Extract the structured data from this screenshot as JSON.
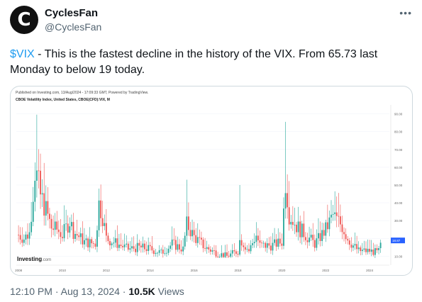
{
  "author": {
    "initial": "C",
    "name": "CyclesFan",
    "handle": "@CyclesFan"
  },
  "menu_icon": "more-horizontal-icon",
  "tweet": {
    "cashtag": "$VIX",
    "text": " - This is the fastest decline in the history of the VIX. From 65.73 last Monday to below 19 today."
  },
  "chart_header": {
    "published": "Published on Investing.com, 13/Aug/2024 - 17:09:33 GMT, Powered by TradingView.",
    "symbol": "CBOE Volatility Index, United States, CBOE(CFD):VIX, M"
  },
  "watermark": {
    "brand": "Investing",
    "suffix": ".com"
  },
  "chart_data": {
    "type": "candlestick",
    "title": "CBOE Volatility Index, United States, CBOE(CFD):VIX, M",
    "interval": "monthly",
    "x_ticks": [
      "2008",
      "2010",
      "2012",
      "2014",
      "2016",
      "2018",
      "2020",
      "2022",
      "2024"
    ],
    "y_ticks": [
      "90.00",
      "80.00",
      "70.00",
      "60.00",
      "50.00",
      "40.00",
      "30.00",
      "20.00",
      "10.00"
    ],
    "y_range": [
      5,
      95
    ],
    "x_range": [
      2007.9,
      2024.9
    ],
    "current_value_label": "18.87",
    "colors": {
      "up": "#26a69a",
      "down": "#ef5350",
      "marker": "#2962ff",
      "grid": "#f0f3fa"
    },
    "approximate_monthly_closes": [
      [
        2008.0,
        22
      ],
      [
        2008.25,
        20
      ],
      [
        2008.5,
        23
      ],
      [
        2008.75,
        59
      ],
      [
        2008.83,
        55
      ],
      [
        2009.0,
        44
      ],
      [
        2009.25,
        36
      ],
      [
        2009.5,
        26
      ],
      [
        2009.75,
        25
      ],
      [
        2010.0,
        22
      ],
      [
        2010.33,
        30
      ],
      [
        2010.5,
        24
      ],
      [
        2010.75,
        21
      ],
      [
        2011.0,
        18
      ],
      [
        2011.5,
        17
      ],
      [
        2011.67,
        40
      ],
      [
        2011.83,
        33
      ],
      [
        2012.0,
        20
      ],
      [
        2012.5,
        17
      ],
      [
        2013.0,
        14
      ],
      [
        2013.5,
        15
      ],
      [
        2014.0,
        14
      ],
      [
        2014.5,
        12
      ],
      [
        2014.83,
        15
      ],
      [
        2015.0,
        17
      ],
      [
        2015.5,
        14
      ],
      [
        2015.67,
        28
      ],
      [
        2016.0,
        21
      ],
      [
        2016.5,
        15
      ],
      [
        2017.0,
        12
      ],
      [
        2017.5,
        10
      ],
      [
        2018.0,
        13
      ],
      [
        2018.1,
        20
      ],
      [
        2018.5,
        13
      ],
      [
        2018.83,
        22
      ],
      [
        2019.0,
        16
      ],
      [
        2019.5,
        16
      ],
      [
        2020.0,
        18
      ],
      [
        2020.17,
        54
      ],
      [
        2020.33,
        34
      ],
      [
        2020.67,
        27
      ],
      [
        2021.0,
        23
      ],
      [
        2021.5,
        17
      ],
      [
        2022.0,
        25
      ],
      [
        2022.33,
        33
      ],
      [
        2022.75,
        27
      ],
      [
        2023.0,
        20
      ],
      [
        2023.25,
        16
      ],
      [
        2023.5,
        13
      ],
      [
        2023.83,
        13
      ],
      [
        2024.0,
        13
      ],
      [
        2024.4,
        12
      ],
      [
        2024.58,
        19
      ]
    ],
    "spike_high": 65.73
  },
  "meta": {
    "time": "12:10 PM",
    "separator": " · ",
    "date": "Aug 13, 2024",
    "views_count": "10.5K",
    "views_label": " Views"
  }
}
